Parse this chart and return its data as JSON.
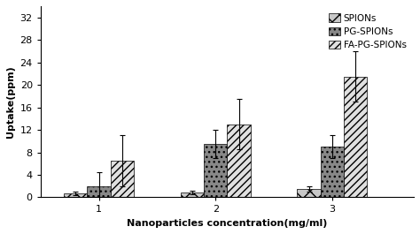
{
  "categories": [
    1,
    2,
    3
  ],
  "series": {
    "SPIONs": {
      "values": [
        0.7,
        0.8,
        1.5
      ],
      "errors": [
        0.3,
        0.3,
        0.5
      ],
      "hatch": "xx",
      "facecolor": "#c8c8c8",
      "edgecolor": "#000000"
    },
    "PG-SPIONs": {
      "values": [
        2.0,
        9.5,
        9.0
      ],
      "errors": [
        2.5,
        2.5,
        2.0
      ],
      "hatch": "...",
      "facecolor": "#888888",
      "edgecolor": "#000000"
    },
    "FA-PG-SPIONs": {
      "values": [
        6.5,
        13.0,
        21.5
      ],
      "errors": [
        4.5,
        4.5,
        4.5
      ],
      "hatch": "////",
      "facecolor": "#e0e0e0",
      "edgecolor": "#000000"
    }
  },
  "xlabel": "Nanoparticles concentration(mg/ml)",
  "ylabel": "Uptake(ppm)",
  "ylim": [
    0,
    34
  ],
  "yticks": [
    0,
    4,
    8,
    12,
    16,
    20,
    24,
    28,
    32
  ],
  "legend_labels": [
    "SPIONs",
    "PG-SPIONs",
    "FA-PG-SPIONs"
  ],
  "bar_width": 0.2,
  "group_positions": [
    1,
    2,
    3
  ],
  "background_color": "#ffffff",
  "axis_fontsize": 8,
  "legend_fontsize": 7.5
}
